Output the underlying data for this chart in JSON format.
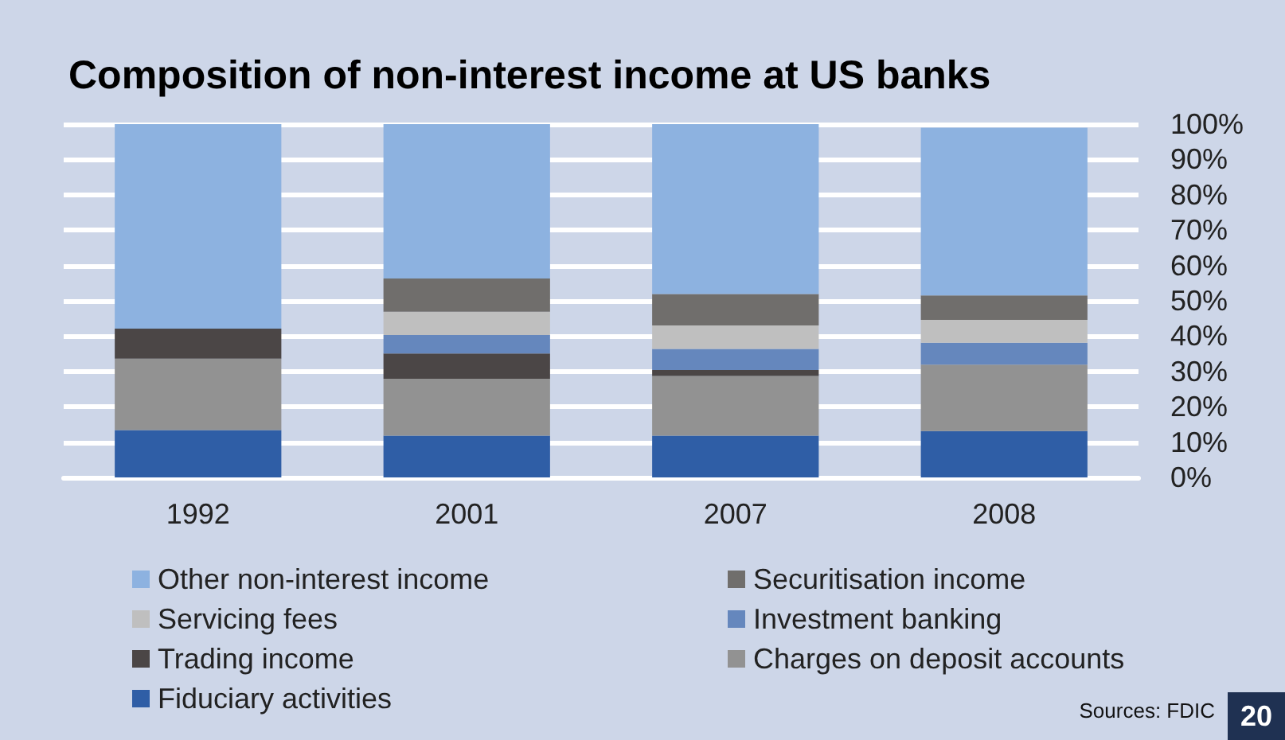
{
  "chart_data": {
    "type": "bar",
    "stacked": true,
    "title": "Composition of non-interest income at US banks",
    "categories": [
      "1992",
      "2001",
      "2007",
      "2008"
    ],
    "series": [
      {
        "name": "Fiduciary activities",
        "color": "#2f5ea6",
        "values": [
          13.4,
          11.8,
          11.8,
          13.1
        ]
      },
      {
        "name": "Charges on deposit accounts",
        "color": "#929292",
        "values": [
          20.2,
          16.1,
          16.9,
          18.8
        ]
      },
      {
        "name": "Trading income",
        "color": "#4b4646",
        "values": [
          8.5,
          7.2,
          1.7,
          0
        ]
      },
      {
        "name": "Investment banking",
        "color": "#6587bd",
        "values": [
          0,
          5.2,
          6.0,
          6.2
        ]
      },
      {
        "name": "Servicing fees",
        "color": "#bfbfbf",
        "values": [
          0,
          6.6,
          6.6,
          6.5
        ]
      },
      {
        "name": "Securitisation income",
        "color": "#706e6c",
        "values": [
          0,
          9.4,
          8.9,
          6.9
        ]
      },
      {
        "name": "Other non-interest income",
        "color": "#8db2e0",
        "values": [
          57.9,
          43.7,
          48.1,
          47.5
        ]
      }
    ],
    "ylim": [
      0,
      100
    ],
    "yticks": [
      {
        "value": 0,
        "label": "0%"
      },
      {
        "value": 10,
        "label": "10%"
      },
      {
        "value": 20,
        "label": "20%"
      },
      {
        "value": 30,
        "label": "30%"
      },
      {
        "value": 40,
        "label": "40%"
      },
      {
        "value": 50,
        "label": "50%"
      },
      {
        "value": 60,
        "label": "60%"
      },
      {
        "value": 70,
        "label": "70%"
      },
      {
        "value": 80,
        "label": "80%"
      },
      {
        "value": 90,
        "label": "90%"
      },
      {
        "value": 100,
        "label": "100%"
      }
    ],
    "grid": "y",
    "legend": "bottom",
    "annotations": [
      "Sources: FDIC",
      "20"
    ]
  }
}
